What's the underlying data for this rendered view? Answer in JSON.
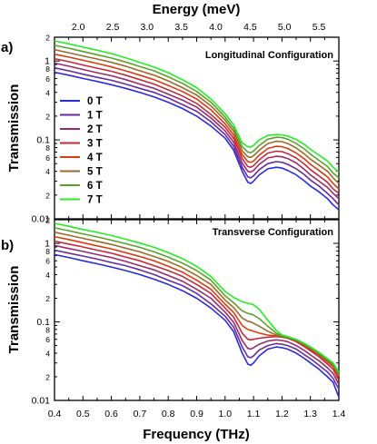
{
  "chart_data": [
    {
      "type": "line",
      "panel_label": "a)",
      "title": "Longitudinal Configuration",
      "top_axis": {
        "label": "Energy (meV)",
        "ticks": [
          "2.0",
          "2.5",
          "3.0",
          "3.5",
          "4.0",
          "4.5",
          "5.0",
          "5.5"
        ],
        "tick_values": [
          2.0,
          2.5,
          3.0,
          3.5,
          4.0,
          4.5,
          5.0,
          5.5
        ]
      },
      "xlabel": "",
      "ylabel": "Transmission",
      "y_scale": "log",
      "xlim": [
        0.4,
        1.4
      ],
      "ylim": [
        0.01,
        2
      ],
      "y_ticks": {
        "major": [
          "0.01",
          "0.1",
          "1"
        ],
        "minor_labeled": [
          "2",
          "4",
          "6",
          "8"
        ]
      },
      "legend": {
        "placement": "left-middle",
        "entries": [
          "0 T",
          "1 T",
          "2 T",
          "3 T",
          "4 T",
          "5 T",
          "6 T",
          "7 T"
        ]
      },
      "colors": [
        "#2a2ae0",
        "#6a2a9c",
        "#9a2a6a",
        "#c42a3a",
        "#dd3a10",
        "#9a6a2a",
        "#5aa02a",
        "#22ee22"
      ],
      "x": [
        0.4,
        0.45,
        0.5,
        0.55,
        0.6,
        0.65,
        0.7,
        0.75,
        0.8,
        0.85,
        0.9,
        0.95,
        1.0,
        1.03,
        1.06,
        1.08,
        1.09,
        1.1,
        1.12,
        1.15,
        1.18,
        1.2,
        1.22,
        1.25,
        1.28,
        1.3,
        1.33,
        1.36,
        1.38,
        1.4
      ],
      "series": [
        {
          "name": "0 T",
          "values": [
            0.72,
            0.66,
            0.6,
            0.55,
            0.5,
            0.45,
            0.4,
            0.35,
            0.3,
            0.25,
            0.2,
            0.15,
            0.105,
            0.074,
            0.04,
            0.029,
            0.028,
            0.03,
            0.036,
            0.043,
            0.045,
            0.044,
            0.041,
            0.036,
            0.03,
            0.026,
            0.022,
            0.018,
            0.015,
            0.013
          ]
        },
        {
          "name": "1 T",
          "values": [
            0.82,
            0.75,
            0.68,
            0.62,
            0.57,
            0.51,
            0.45,
            0.4,
            0.34,
            0.28,
            0.23,
            0.17,
            0.117,
            0.083,
            0.045,
            0.034,
            0.033,
            0.035,
            0.042,
            0.05,
            0.053,
            0.052,
            0.049,
            0.043,
            0.036,
            0.031,
            0.026,
            0.021,
            0.018,
            0.015
          ]
        },
        {
          "name": "2 T",
          "values": [
            0.94,
            0.86,
            0.78,
            0.71,
            0.65,
            0.58,
            0.51,
            0.45,
            0.38,
            0.32,
            0.26,
            0.19,
            0.13,
            0.093,
            0.051,
            0.04,
            0.039,
            0.041,
            0.049,
            0.059,
            0.062,
            0.061,
            0.058,
            0.051,
            0.042,
            0.036,
            0.03,
            0.025,
            0.021,
            0.018
          ]
        },
        {
          "name": "3 T",
          "values": [
            1.07,
            0.98,
            0.89,
            0.81,
            0.74,
            0.66,
            0.58,
            0.51,
            0.43,
            0.36,
            0.29,
            0.21,
            0.145,
            0.104,
            0.058,
            0.046,
            0.045,
            0.047,
            0.056,
            0.068,
            0.072,
            0.071,
            0.067,
            0.059,
            0.049,
            0.042,
            0.035,
            0.029,
            0.024,
            0.021
          ]
        },
        {
          "name": "4 T",
          "values": [
            1.22,
            1.12,
            1.02,
            0.93,
            0.84,
            0.75,
            0.66,
            0.58,
            0.49,
            0.41,
            0.33,
            0.24,
            0.16,
            0.115,
            0.065,
            0.053,
            0.052,
            0.054,
            0.064,
            0.078,
            0.083,
            0.082,
            0.078,
            0.068,
            0.057,
            0.049,
            0.041,
            0.034,
            0.028,
            0.024
          ]
        },
        {
          "name": "5 T",
          "values": [
            1.39,
            1.27,
            1.16,
            1.06,
            0.96,
            0.86,
            0.75,
            0.66,
            0.56,
            0.46,
            0.37,
            0.27,
            0.178,
            0.128,
            0.073,
            0.061,
            0.06,
            0.063,
            0.074,
            0.09,
            0.096,
            0.095,
            0.09,
            0.079,
            0.066,
            0.057,
            0.048,
            0.04,
            0.033,
            0.028
          ]
        },
        {
          "name": "6 T",
          "values": [
            1.58,
            1.45,
            1.32,
            1.2,
            1.09,
            0.97,
            0.85,
            0.75,
            0.63,
            0.52,
            0.41,
            0.3,
            0.195,
            0.14,
            0.082,
            0.07,
            0.069,
            0.072,
            0.085,
            0.102,
            0.108,
            0.107,
            0.102,
            0.09,
            0.076,
            0.066,
            0.055,
            0.046,
            0.038,
            0.033
          ]
        },
        {
          "name": "7 T",
          "values": [
            1.8,
            1.65,
            1.5,
            1.37,
            1.24,
            1.1,
            0.96,
            0.84,
            0.71,
            0.58,
            0.46,
            0.33,
            0.215,
            0.155,
            0.092,
            0.082,
            0.081,
            0.085,
            0.1,
            0.114,
            0.117,
            0.116,
            0.112,
            0.101,
            0.087,
            0.076,
            0.064,
            0.054,
            0.045,
            0.039
          ]
        }
      ]
    },
    {
      "type": "line",
      "panel_label": "b)",
      "title": "Transverse Configuration",
      "xlabel": "Frequency (THz)",
      "x_ticks": [
        "0.4",
        "0.5",
        "0.6",
        "0.7",
        "0.8",
        "0.9",
        "1.0",
        "1.1",
        "1.2",
        "1.3",
        "1.4"
      ],
      "ylabel": "Transmission",
      "y_scale": "log",
      "xlim": [
        0.4,
        1.4
      ],
      "ylim": [
        0.01,
        2
      ],
      "y_ticks": {
        "major": [
          "0.01",
          "0.1",
          "1"
        ],
        "minor_labeled": [
          "2",
          "4",
          "6",
          "8"
        ]
      },
      "colors": [
        "#2a2ae0",
        "#6a2a9c",
        "#9a2a6a",
        "#c42a3a",
        "#dd3a10",
        "#9a6a2a",
        "#5aa02a",
        "#22ee22"
      ],
      "x": [
        0.4,
        0.45,
        0.5,
        0.55,
        0.6,
        0.65,
        0.7,
        0.75,
        0.8,
        0.85,
        0.9,
        0.95,
        1.0,
        1.03,
        1.06,
        1.08,
        1.09,
        1.1,
        1.12,
        1.15,
        1.18,
        1.2,
        1.22,
        1.25,
        1.28,
        1.3,
        1.33,
        1.36,
        1.38,
        1.4
      ],
      "series": [
        {
          "name": "0 T",
          "values": [
            0.72,
            0.66,
            0.6,
            0.55,
            0.5,
            0.45,
            0.4,
            0.35,
            0.3,
            0.25,
            0.2,
            0.15,
            0.105,
            0.075,
            0.04,
            0.029,
            0.028,
            0.03,
            0.037,
            0.045,
            0.048,
            0.047,
            0.045,
            0.04,
            0.034,
            0.03,
            0.025,
            0.02,
            0.017,
            0.011
          ]
        },
        {
          "name": "1 T",
          "values": [
            0.82,
            0.75,
            0.69,
            0.63,
            0.57,
            0.52,
            0.46,
            0.4,
            0.34,
            0.29,
            0.23,
            0.17,
            0.118,
            0.086,
            0.048,
            0.036,
            0.035,
            0.037,
            0.044,
            0.05,
            0.053,
            0.052,
            0.05,
            0.045,
            0.038,
            0.034,
            0.028,
            0.023,
            0.019,
            0.014
          ]
        },
        {
          "name": "2 T",
          "values": [
            0.94,
            0.86,
            0.79,
            0.72,
            0.66,
            0.59,
            0.52,
            0.46,
            0.39,
            0.33,
            0.26,
            0.2,
            0.133,
            0.099,
            0.058,
            0.046,
            0.045,
            0.047,
            0.052,
            0.057,
            0.059,
            0.058,
            0.056,
            0.05,
            0.043,
            0.038,
            0.032,
            0.026,
            0.022,
            0.016
          ]
        },
        {
          "name": "3 T",
          "values": [
            1.07,
            0.98,
            0.9,
            0.82,
            0.75,
            0.67,
            0.6,
            0.52,
            0.45,
            0.38,
            0.3,
            0.23,
            0.15,
            0.115,
            0.072,
            0.06,
            0.059,
            0.06,
            0.062,
            0.064,
            0.065,
            0.064,
            0.062,
            0.056,
            0.048,
            0.043,
            0.036,
            0.029,
            0.025,
            0.018
          ]
        },
        {
          "name": "4 T",
          "values": [
            1.22,
            1.12,
            1.02,
            0.93,
            0.85,
            0.76,
            0.68,
            0.6,
            0.51,
            0.43,
            0.34,
            0.26,
            0.168,
            0.132,
            0.09,
            0.08,
            0.078,
            0.076,
            0.072,
            0.068,
            0.066,
            0.065,
            0.063,
            0.058,
            0.05,
            0.045,
            0.038,
            0.031,
            0.027,
            0.02
          ]
        },
        {
          "name": "5 T",
          "values": [
            1.39,
            1.27,
            1.16,
            1.06,
            0.97,
            0.87,
            0.78,
            0.68,
            0.59,
            0.49,
            0.39,
            0.3,
            0.19,
            0.152,
            0.112,
            0.102,
            0.1,
            0.096,
            0.088,
            0.076,
            0.068,
            0.065,
            0.063,
            0.058,
            0.051,
            0.046,
            0.039,
            0.032,
            0.028,
            0.021
          ]
        },
        {
          "name": "6 T",
          "values": [
            1.58,
            1.45,
            1.32,
            1.21,
            1.1,
            0.99,
            0.89,
            0.78,
            0.67,
            0.56,
            0.45,
            0.34,
            0.215,
            0.175,
            0.138,
            0.128,
            0.126,
            0.122,
            0.11,
            0.088,
            0.072,
            0.066,
            0.064,
            0.059,
            0.052,
            0.047,
            0.04,
            0.033,
            0.029,
            0.022
          ]
        },
        {
          "name": "7 T",
          "values": [
            1.8,
            1.65,
            1.5,
            1.38,
            1.26,
            1.13,
            1.01,
            0.89,
            0.76,
            0.64,
            0.51,
            0.38,
            0.245,
            0.205,
            0.18,
            0.172,
            0.17,
            0.165,
            0.145,
            0.105,
            0.078,
            0.068,
            0.065,
            0.06,
            0.053,
            0.048,
            0.041,
            0.034,
            0.03,
            0.023
          ]
        }
      ]
    }
  ]
}
